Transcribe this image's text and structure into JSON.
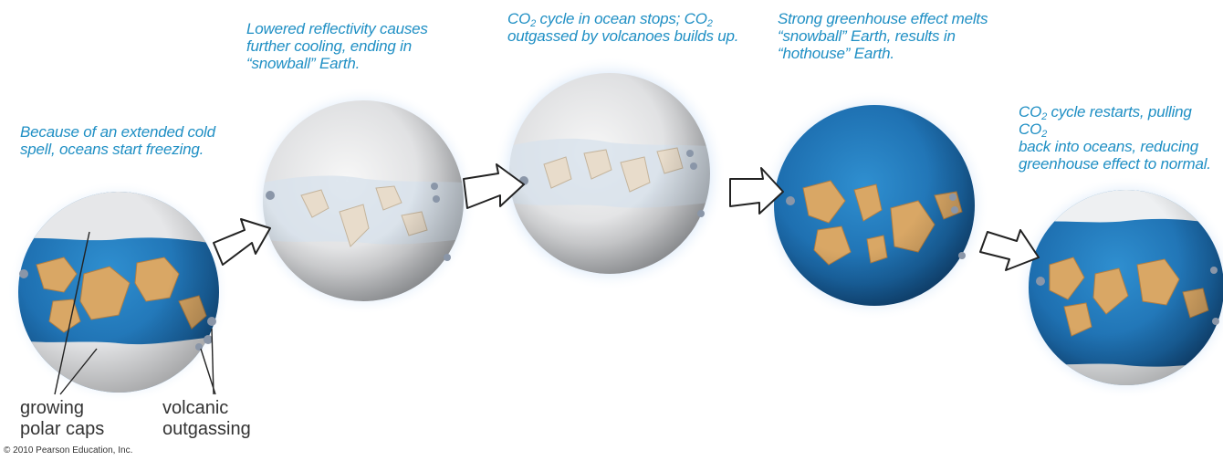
{
  "captions": [
    {
      "id": "c1",
      "lines": [
        [
          {
            "t": "Because of an extended cold"
          }
        ],
        [
          {
            "t": "spell, oceans start freezing."
          }
        ]
      ]
    },
    {
      "id": "c2",
      "lines": [
        [
          {
            "t": "Lowered reflectivity causes"
          }
        ],
        [
          {
            "t": "further cooling, ending in"
          }
        ],
        [
          {
            "t": "“snowball” Earth."
          }
        ]
      ]
    },
    {
      "id": "c3",
      "lines": [
        [
          {
            "t": "CO"
          },
          {
            "sub": "2"
          },
          {
            "t": " cycle in ocean stops; CO"
          },
          {
            "sub": "2"
          }
        ],
        [
          {
            "t": "outgassed by volcanoes builds up."
          }
        ]
      ]
    },
    {
      "id": "c4",
      "lines": [
        [
          {
            "t": "Strong greenhouse effect melts"
          }
        ],
        [
          {
            "t": "“snowball” Earth, results in"
          }
        ],
        [
          {
            "t": "“hothouse” Earth."
          }
        ]
      ]
    },
    {
      "id": "c5",
      "lines": [
        [
          {
            "t": "CO"
          },
          {
            "sub": "2"
          },
          {
            "t": " cycle restarts, pulling CO"
          },
          {
            "sub": "2"
          }
        ],
        [
          {
            "t": "back into oceans, reducing"
          }
        ],
        [
          {
            "t": "greenhouse effect to normal."
          }
        ]
      ]
    }
  ],
  "labels": {
    "polar_caps": [
      "growing",
      "polar caps"
    ],
    "volcanic": [
      "volcanic",
      "outgassing"
    ]
  },
  "copyright": "© 2010 Pearson Education, Inc.",
  "colors": {
    "caption": "#1f8fc4",
    "ocean": "#1e6fb0",
    "ice": "#e4e6e8",
    "land": "#d9a765",
    "glow": "#7fb3ea"
  },
  "stages": [
    "freezing",
    "snowball",
    "snowball",
    "hothouse",
    "normal"
  ]
}
